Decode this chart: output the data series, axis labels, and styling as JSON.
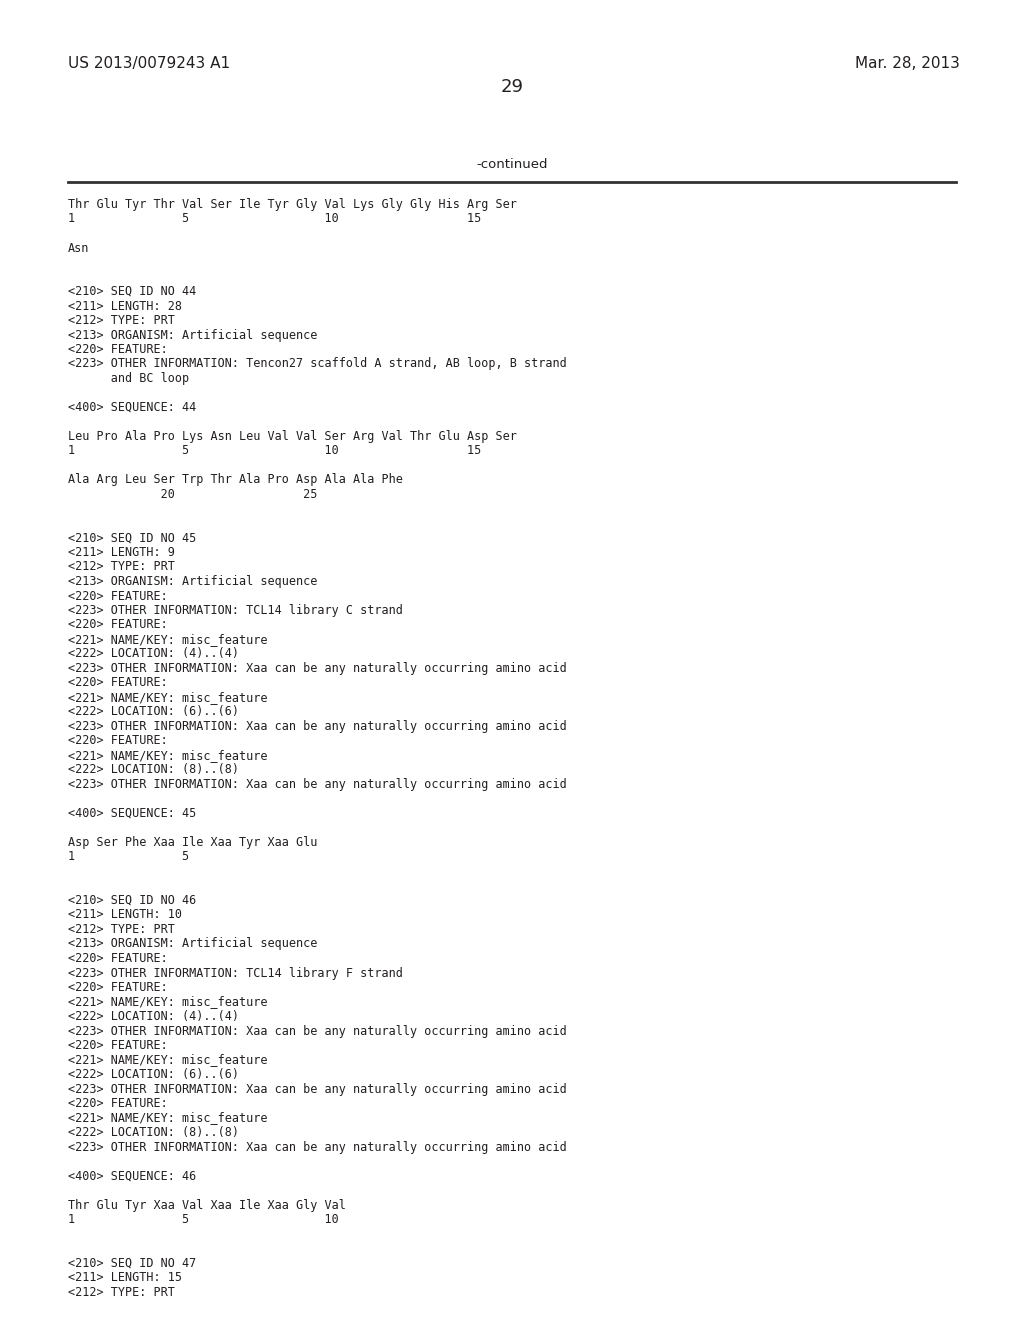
{
  "header_left": "US 2013/0079243 A1",
  "header_right": "Mar. 28, 2013",
  "page_number": "29",
  "continued_label": "-continued",
  "background_color": "#ffffff",
  "text_color": "#231f20",
  "header_fontsize": 11,
  "page_fontsize": 13,
  "continued_fontsize": 9.5,
  "mono_fontsize": 8.5,
  "content_lines": [
    "Thr Glu Tyr Thr Val Ser Ile Tyr Gly Val Lys Gly Gly His Arg Ser",
    "1               5                   10                  15",
    "",
    "Asn",
    "",
    "",
    "<210> SEQ ID NO 44",
    "<211> LENGTH: 28",
    "<212> TYPE: PRT",
    "<213> ORGANISM: Artificial sequence",
    "<220> FEATURE:",
    "<223> OTHER INFORMATION: Tencon27 scaffold A strand, AB loop, B strand",
    "      and BC loop",
    "",
    "<400> SEQUENCE: 44",
    "",
    "Leu Pro Ala Pro Lys Asn Leu Val Val Ser Arg Val Thr Glu Asp Ser",
    "1               5                   10                  15",
    "",
    "Ala Arg Leu Ser Trp Thr Ala Pro Asp Ala Ala Phe",
    "             20                  25",
    "",
    "",
    "<210> SEQ ID NO 45",
    "<211> LENGTH: 9",
    "<212> TYPE: PRT",
    "<213> ORGANISM: Artificial sequence",
    "<220> FEATURE:",
    "<223> OTHER INFORMATION: TCL14 library C strand",
    "<220> FEATURE:",
    "<221> NAME/KEY: misc_feature",
    "<222> LOCATION: (4)..(4)",
    "<223> OTHER INFORMATION: Xaa can be any naturally occurring amino acid",
    "<220> FEATURE:",
    "<221> NAME/KEY: misc_feature",
    "<222> LOCATION: (6)..(6)",
    "<223> OTHER INFORMATION: Xaa can be any naturally occurring amino acid",
    "<220> FEATURE:",
    "<221> NAME/KEY: misc_feature",
    "<222> LOCATION: (8)..(8)",
    "<223> OTHER INFORMATION: Xaa can be any naturally occurring amino acid",
    "",
    "<400> SEQUENCE: 45",
    "",
    "Asp Ser Phe Xaa Ile Xaa Tyr Xaa Glu",
    "1               5",
    "",
    "",
    "<210> SEQ ID NO 46",
    "<211> LENGTH: 10",
    "<212> TYPE: PRT",
    "<213> ORGANISM: Artificial sequence",
    "<220> FEATURE:",
    "<223> OTHER INFORMATION: TCL14 library F strand",
    "<220> FEATURE:",
    "<221> NAME/KEY: misc_feature",
    "<222> LOCATION: (4)..(4)",
    "<223> OTHER INFORMATION: Xaa can be any naturally occurring amino acid",
    "<220> FEATURE:",
    "<221> NAME/KEY: misc_feature",
    "<222> LOCATION: (6)..(6)",
    "<223> OTHER INFORMATION: Xaa can be any naturally occurring amino acid",
    "<220> FEATURE:",
    "<221> NAME/KEY: misc_feature",
    "<222> LOCATION: (8)..(8)",
    "<223> OTHER INFORMATION: Xaa can be any naturally occurring amino acid",
    "",
    "<400> SEQUENCE: 46",
    "",
    "Thr Glu Tyr Xaa Val Xaa Ile Xaa Gly Val",
    "1               5                   10",
    "",
    "",
    "<210> SEQ ID NO 47",
    "<211> LENGTH: 15",
    "<212> TYPE: PRT"
  ]
}
